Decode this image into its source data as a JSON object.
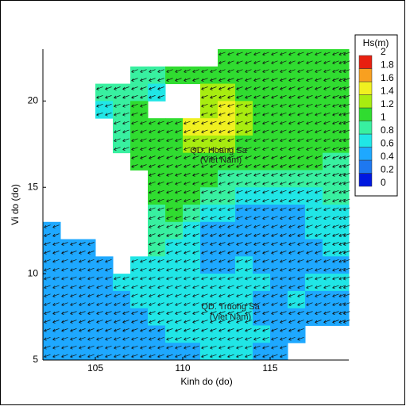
{
  "chart_data": {
    "type": "heatmap",
    "xlabel": "Kinh do (do)",
    "ylabel": "Vi do (do)",
    "xlim": [
      102,
      119.5
    ],
    "ylim": [
      5,
      23
    ],
    "xticks": [
      105,
      110,
      115
    ],
    "yticks": [
      5,
      10,
      15,
      20
    ],
    "colorbar": {
      "title": "Hs(m)",
      "ticks": [
        0,
        0.2,
        0.4,
        0.6,
        0.8,
        1,
        1.2,
        1.4,
        1.6,
        1.8,
        2
      ],
      "colors": [
        "#0018e0",
        "#1e78f0",
        "#1ea8ff",
        "#20e6e6",
        "#38f0a0",
        "#30dc30",
        "#a8ec10",
        "#f0f020",
        "#f8a020",
        "#e82010"
      ]
    },
    "annotations": [
      "QD. Hoang Sa",
      "(Viet Nam)",
      "QD. Truong Sa",
      "(Viet Nam)"
    ],
    "grid": {
      "x": [
        102,
        103,
        104,
        105,
        106,
        107,
        108,
        109,
        110,
        111,
        112,
        113,
        114,
        115,
        116,
        117,
        118,
        119
      ],
      "y": [
        22,
        21,
        20,
        19,
        18,
        17,
        16,
        15,
        14,
        13,
        12,
        11,
        10,
        9,
        8,
        7,
        6,
        5
      ],
      "values": [
        [
          null,
          null,
          null,
          null,
          null,
          null,
          null,
          null,
          null,
          null,
          1.0,
          1.0,
          1.0,
          1.0,
          1.0,
          1.0,
          1.0,
          1.0
        ],
        [
          null,
          null,
          null,
          null,
          null,
          0.8,
          0.9,
          1.0,
          1.0,
          1.0,
          1.0,
          1.1,
          1.1,
          1.1,
          1.0,
          1.0,
          1.0,
          1.0
        ],
        [
          null,
          null,
          null,
          0.8,
          0.9,
          0.9,
          0.7,
          null,
          null,
          1.2,
          1.2,
          1.1,
          1.1,
          1.0,
          1.0,
          1.0,
          1.0,
          1.0
        ],
        [
          null,
          null,
          null,
          0.7,
          0.9,
          1.0,
          null,
          null,
          null,
          1.3,
          1.4,
          1.3,
          1.1,
          1.0,
          1.0,
          1.0,
          1.0,
          1.0
        ],
        [
          null,
          null,
          null,
          null,
          0.8,
          1.0,
          1.0,
          1.1,
          1.4,
          1.5,
          1.4,
          1.3,
          1.1,
          1.0,
          1.0,
          1.0,
          1.0,
          1.0
        ],
        [
          null,
          null,
          null,
          null,
          0.9,
          1.0,
          1.1,
          1.1,
          1.2,
          1.2,
          1.2,
          1.1,
          1.1,
          1.0,
          1.0,
          1.0,
          1.0,
          1.0
        ],
        [
          null,
          null,
          null,
          null,
          null,
          1.0,
          1.1,
          1.1,
          1.1,
          1.1,
          1.0,
          1.0,
          1.0,
          1.0,
          1.0,
          1.0,
          0.9,
          0.9
        ],
        [
          null,
          null,
          null,
          null,
          null,
          null,
          1.0,
          1.0,
          1.0,
          1.0,
          0.9,
          0.9,
          0.8,
          0.8,
          0.8,
          0.8,
          0.8,
          0.8
        ],
        [
          null,
          null,
          null,
          null,
          null,
          null,
          1.0,
          1.0,
          1.0,
          0.9,
          0.8,
          0.7,
          0.7,
          0.7,
          0.7,
          0.7,
          0.8,
          0.8
        ],
        [
          null,
          null,
          null,
          null,
          null,
          null,
          0.9,
          1.0,
          0.8,
          0.7,
          0.6,
          0.5,
          0.5,
          0.5,
          0.5,
          0.6,
          0.7,
          0.7
        ],
        [
          0.5,
          null,
          null,
          null,
          null,
          null,
          0.9,
          0.9,
          0.7,
          0.5,
          0.5,
          0.5,
          0.5,
          0.5,
          0.5,
          0.6,
          0.7,
          0.7
        ],
        [
          0.5,
          0.5,
          0.5,
          null,
          null,
          null,
          0.8,
          0.7,
          0.6,
          0.5,
          0.5,
          0.5,
          0.5,
          0.5,
          0.5,
          0.5,
          0.6,
          0.6
        ],
        [
          0.5,
          0.5,
          0.5,
          0.5,
          null,
          0.6,
          0.6,
          0.6,
          0.6,
          0.5,
          0.5,
          0.6,
          0.5,
          0.5,
          0.5,
          0.5,
          0.5,
          0.5
        ],
        [
          0.5,
          0.5,
          0.5,
          0.5,
          0.6,
          0.6,
          0.6,
          0.6,
          0.6,
          0.6,
          0.6,
          0.6,
          0.6,
          0.5,
          0.5,
          0.6,
          0.6,
          0.6
        ],
        [
          0.5,
          0.5,
          0.5,
          0.5,
          0.5,
          0.6,
          0.6,
          0.6,
          0.6,
          0.6,
          0.6,
          0.6,
          0.5,
          0.5,
          0.6,
          0.5,
          0.5,
          0.5
        ],
        [
          0.5,
          0.5,
          0.5,
          0.5,
          0.5,
          0.5,
          0.6,
          0.6,
          0.6,
          0.6,
          0.6,
          0.6,
          0.5,
          0.5,
          0.5,
          0.5,
          0.5,
          0.5
        ],
        [
          0.5,
          0.5,
          0.5,
          0.5,
          0.5,
          0.5,
          0.5,
          0.6,
          0.6,
          0.6,
          0.6,
          0.6,
          0.6,
          0.5,
          0.5,
          null,
          null,
          null
        ],
        [
          0.5,
          0.5,
          0.5,
          0.5,
          0.5,
          0.5,
          0.5,
          0.5,
          0.5,
          0.6,
          0.6,
          0.6,
          0.5,
          0.5,
          null,
          null,
          null,
          null
        ]
      ]
    }
  }
}
